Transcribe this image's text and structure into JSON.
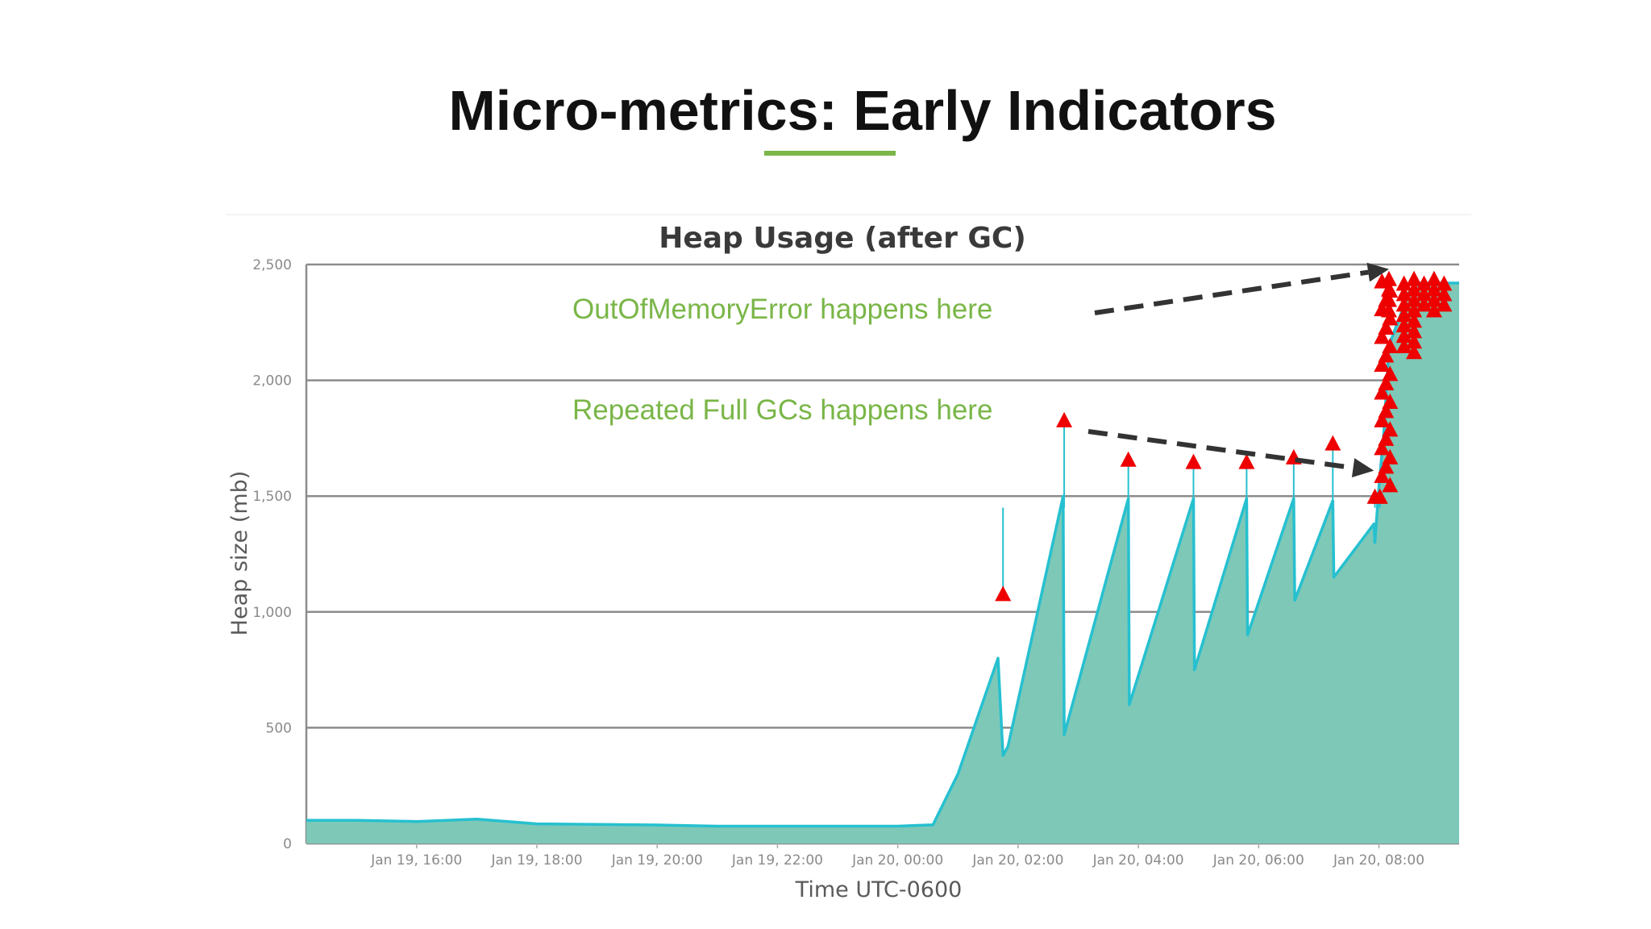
{
  "slide": {
    "title": "Micro-metrics: Early Indicators"
  },
  "colors": {
    "accent_green": "#7ab648",
    "area_fill": "#7ec8b7",
    "line": "#26c0d0",
    "marker": "#ee0000",
    "grid": "#8c8c8c",
    "arrow": "#333333"
  },
  "chart_data": {
    "type": "area",
    "title": "Heap Usage (after GC)",
    "xlabel": "Time UTC-0600",
    "ylabel": "Heap size (mb)",
    "ylim": [
      0,
      2500
    ],
    "yticks": [
      0,
      500,
      1000,
      1500,
      2000,
      2500
    ],
    "ytick_labels": [
      "0",
      "500",
      "1,000",
      "1,500",
      "2,000",
      "2,500"
    ],
    "xlim": [
      "Jan 19, 14:10",
      "Jan 20, 09:20"
    ],
    "xtick_labels": [
      "Jan 19, 16:00",
      "Jan 19, 18:00",
      "Jan 19, 20:00",
      "Jan 19, 22:00",
      "Jan 20, 00:00",
      "Jan 20, 02:00",
      "Jan 20, 04:00",
      "Jan 20, 06:00",
      "Jan 20, 08:00"
    ],
    "grid": true,
    "legend": "none",
    "series": [
      {
        "x": [
          "Jan 19, 14:10",
          "Jan 19, 15:00",
          "Jan 19, 16:00",
          "Jan 19, 17:00",
          "Jan 19, 18:00",
          "Jan 19, 20:00",
          "Jan 19, 21:00",
          "Jan 19, 22:00",
          "Jan 20, 00:00",
          "Jan 20, 00:30",
          "Jan 20, 00:35",
          "Jan 20, 01:00",
          "Jan 20, 01:40",
          "Jan 20, 01:45",
          "Jan 20, 01:50",
          "Jan 20, 02:45",
          "Jan 20, 02:46",
          "Jan 20, 03:50",
          "Jan 20, 03:51",
          "Jan 20, 04:55",
          "Jan 20, 04:56",
          "Jan 20, 05:48",
          "Jan 20, 05:49",
          "Jan 20, 06:35",
          "Jan 20, 06:36",
          "Jan 20, 07:14",
          "Jan 20, 07:15",
          "Jan 20, 07:55",
          "Jan 20, 07:56",
          "Jan 20, 08:00",
          "Jan 20, 08:05",
          "Jan 20, 08:10",
          "Jan 20, 08:30",
          "Jan 20, 08:40",
          "Jan 20, 09:00",
          "Jan 20, 09:20"
        ],
        "y": [
          100,
          100,
          95,
          105,
          85,
          80,
          75,
          75,
          75,
          80,
          80,
          300,
          800,
          380,
          420,
          1500,
          470,
          1490,
          600,
          1490,
          750,
          1490,
          900,
          1490,
          1050,
          1480,
          1150,
          1380,
          1300,
          1540,
          1780,
          2150,
          2380,
          2420,
          2420,
          2420
        ]
      }
    ],
    "full_gc_events": [
      {
        "x": "Jan 20, 01:45",
        "y": 1080
      },
      {
        "x": "Jan 20, 02:46",
        "y": 1830
      },
      {
        "x": "Jan 20, 03:50",
        "y": 1660
      },
      {
        "x": "Jan 20, 04:55",
        "y": 1650
      },
      {
        "x": "Jan 20, 05:48",
        "y": 1650
      },
      {
        "x": "Jan 20, 06:35",
        "y": 1670
      },
      {
        "x": "Jan 20, 07:14",
        "y": 1730
      },
      {
        "x": "Jan 20, 07:56",
        "y": 1500
      },
      {
        "x": "Jan 20, 08:01",
        "y": 1500
      }
    ],
    "annotations": [
      {
        "text": "OutOfMemoryError happens here",
        "points_to": {
          "x": "Jan 20, 08:10",
          "y": 2480
        }
      },
      {
        "text": "Repeated Full GCs happens here",
        "points_to": {
          "x": "Jan 20, 07:55",
          "y": 1610
        }
      }
    ]
  }
}
